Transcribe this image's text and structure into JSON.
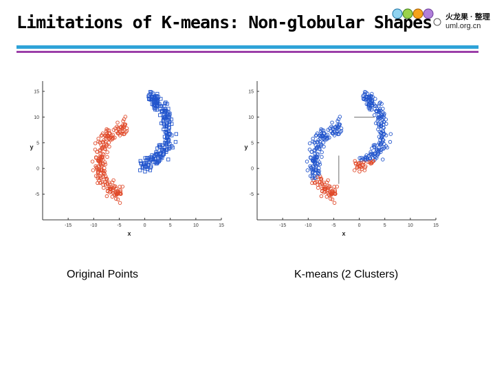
{
  "slide": {
    "title": "Limitations of K-means: Non-globular Shapes",
    "logo_text_line1": "火龙果 · 整理",
    "logo_text_line2": "uml.org.cn"
  },
  "colors": {
    "blue_points": "#2255cc",
    "red_points": "#e04a2a",
    "rule_blue": "#2ea3d8",
    "rule_purple": "#9b3ea8"
  },
  "captions": {
    "left": "Original Points",
    "right": "K-means (2 Clusters)"
  },
  "chart_data": [
    {
      "type": "scatter",
      "xlabel": "x",
      "ylabel": "y",
      "xlim": [
        -20,
        15
      ],
      "ylim": [
        -10,
        17
      ],
      "xticks": [
        "-15",
        "-10",
        "-5",
        "0",
        "5",
        "10",
        "15"
      ],
      "yticks": [
        "15",
        "10",
        "5",
        "0",
        "-5"
      ],
      "grid": false,
      "legend": "none",
      "series": [
        {
          "marker": "square",
          "shape": "upper-crescent",
          "color": "#2255cc"
        },
        {
          "marker": "circle",
          "shape": "lower-crescent",
          "color": "#e04a2a"
        }
      ]
    },
    {
      "type": "scatter",
      "xlabel": "x",
      "ylabel": "y",
      "xlim": [
        -20,
        15
      ],
      "ylim": [
        -10,
        17
      ],
      "xticks": [
        "-15",
        "-10",
        "-5",
        "0",
        "5",
        "10",
        "15"
      ],
      "yticks": [
        "15",
        "10",
        "5",
        "0",
        "-5"
      ],
      "grid": false,
      "legend": "none",
      "series": [
        {
          "marker": "circle",
          "shape": "upper-cluster",
          "color": "#2255cc"
        },
        {
          "marker": "circle",
          "shape": "lower-cluster",
          "color": "#e04a2a"
        }
      ]
    }
  ]
}
